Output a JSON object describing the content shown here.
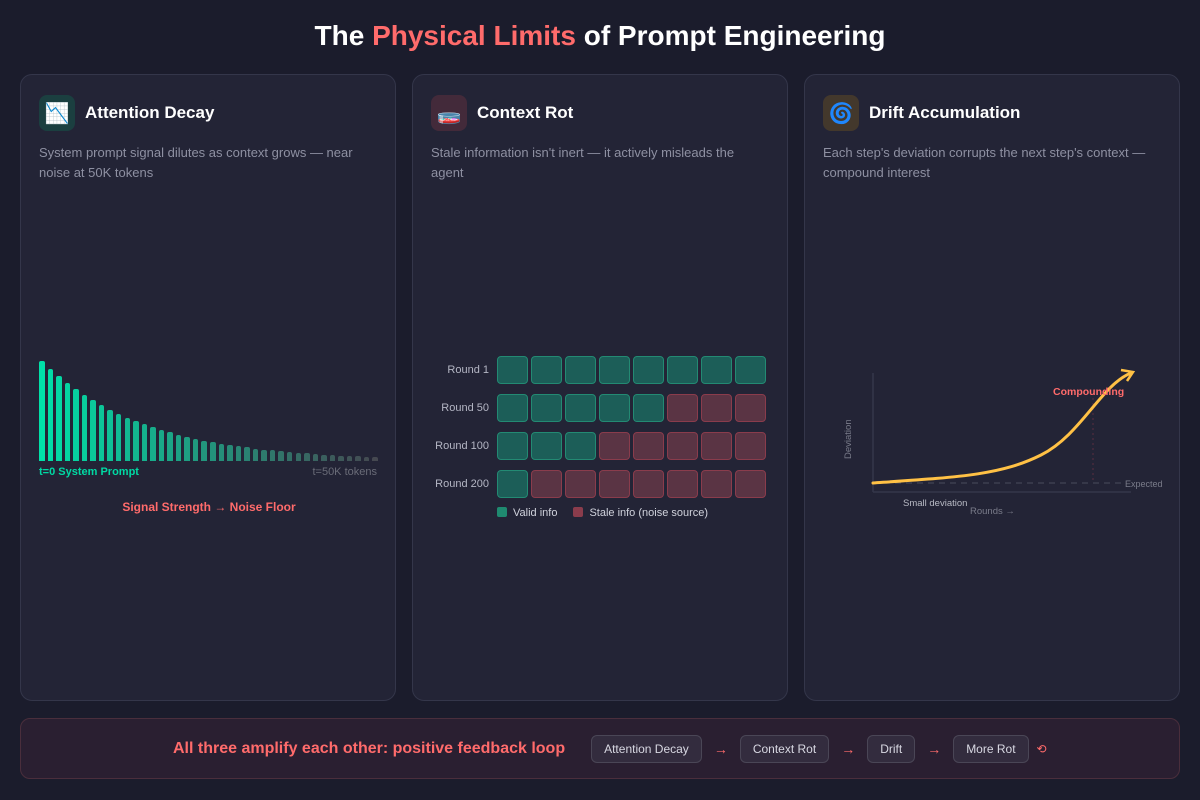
{
  "title": {
    "pre": "The ",
    "highlight": "Physical Limits",
    "post": " of Prompt Engineering"
  },
  "cards": [
    {
      "icon": "📉",
      "icon_name": "chart-decreasing-icon",
      "title": "Attention Decay",
      "desc": "System prompt signal dilutes as context grows — near noise at 50K tokens"
    },
    {
      "icon": "🧫",
      "icon_name": "petri-dish-icon",
      "title": "Context Rot",
      "desc": "Stale information isn't inert — it actively misleads the agent"
    },
    {
      "icon": "🌀",
      "icon_name": "cyclone-icon",
      "title": "Drift Accumulation",
      "desc": "Each step's deviation corrupts the next step's context — compound interest"
    }
  ],
  "decay": {
    "start_label": "t=0 System Prompt",
    "end_label": "t=50K tokens",
    "caption": "Signal Strength → Noise Floor",
    "bar_count": 40,
    "decay_rate": 0.92,
    "floor": 0.04,
    "colors": {
      "start": "#00e0a8",
      "end": "#454850"
    }
  },
  "rot": {
    "rows": [
      {
        "label": "Round 1",
        "valid": 8
      },
      {
        "label": "Round 50",
        "valid": 5
      },
      {
        "label": "Round 100",
        "valid": 3
      },
      {
        "label": "Round 200",
        "valid": 1
      }
    ],
    "cells_per_row": 8,
    "legend_valid": "Valid info",
    "legend_stale": "Stale info (noise source)"
  },
  "drift": {
    "ylabel": "Deviation",
    "xlabel": "Rounds →",
    "expected_label": "Expected",
    "small_label": "Small deviation",
    "compound_label": "Compounding",
    "curve_color": "#ffc145"
  },
  "banner": {
    "message": "All three amplify each other: positive feedback loop",
    "chain": [
      "Attention Decay",
      "Context Rot",
      "Drift",
      "More Rot"
    ],
    "arrow": "→",
    "loop": "⟲"
  }
}
